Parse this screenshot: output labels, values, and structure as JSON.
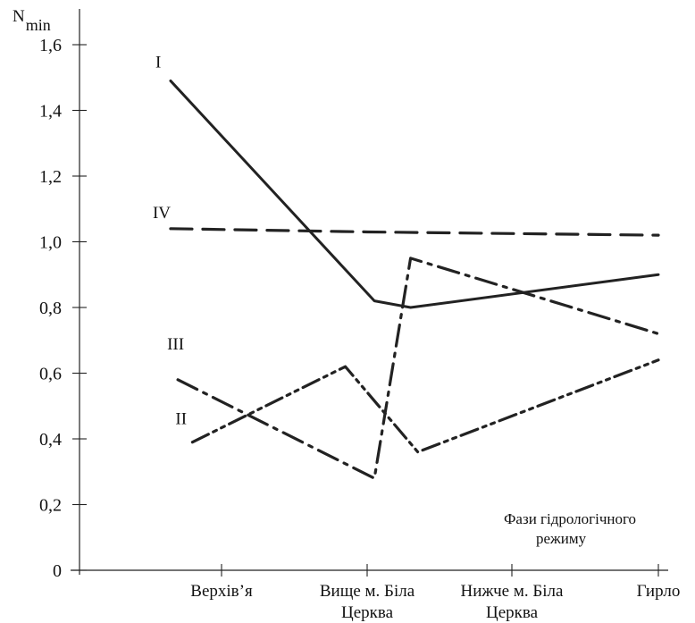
{
  "chart_data": {
    "type": "line",
    "ylabel_main": "N",
    "ylabel_sub": "min",
    "categories": [
      "Верхів’я",
      "Вище м. Біла Церква",
      "Нижче м. Біла Церква",
      "Гирло"
    ],
    "category_lines": [
      [
        "Верхів’я"
      ],
      [
        "Вище м. Біла",
        "Церква"
      ],
      [
        "Нижче м. Біла",
        "Церква"
      ],
      [
        "Гирло"
      ]
    ],
    "yticks": [
      0,
      0.2,
      0.4,
      0.6,
      0.8,
      1.0,
      1.2,
      1.4,
      1.6
    ],
    "ytick_labels": [
      "0",
      "0,2",
      "0,4",
      "0,6",
      "0,8",
      "1,0",
      "1,2",
      "1,4",
      "1,6"
    ],
    "ylim": [
      0,
      1.6
    ],
    "annotation_lines": [
      "Фази гідрологічного",
      "режиму"
    ],
    "series": [
      {
        "name": "I",
        "style": "solid",
        "color": "#222222",
        "points": [
          {
            "x": -0.35,
            "y": 1.49
          },
          {
            "x": 1.05,
            "y": 0.82
          },
          {
            "x": 1.3,
            "y": 0.8
          },
          {
            "x": 3.0,
            "y": 0.9
          }
        ]
      },
      {
        "name": "II",
        "style": "dash-dot-dot",
        "color": "#222222",
        "points": [
          {
            "x": -0.2,
            "y": 0.39
          },
          {
            "x": 0.85,
            "y": 0.62
          },
          {
            "x": 1.35,
            "y": 0.36
          },
          {
            "x": 3.0,
            "y": 0.64
          }
        ]
      },
      {
        "name": "III",
        "style": "dash-dot",
        "color": "#222222",
        "points": [
          {
            "x": -0.3,
            "y": 0.58
          },
          {
            "x": 1.05,
            "y": 0.28
          },
          {
            "x": 1.3,
            "y": 0.95
          },
          {
            "x": 3.0,
            "y": 0.72
          }
        ]
      },
      {
        "name": "IV",
        "style": "dash",
        "color": "#222222",
        "points": [
          {
            "x": -0.35,
            "y": 1.04
          },
          {
            "x": 1.0,
            "y": 1.03
          },
          {
            "x": 3.0,
            "y": 1.02
          }
        ]
      }
    ]
  }
}
